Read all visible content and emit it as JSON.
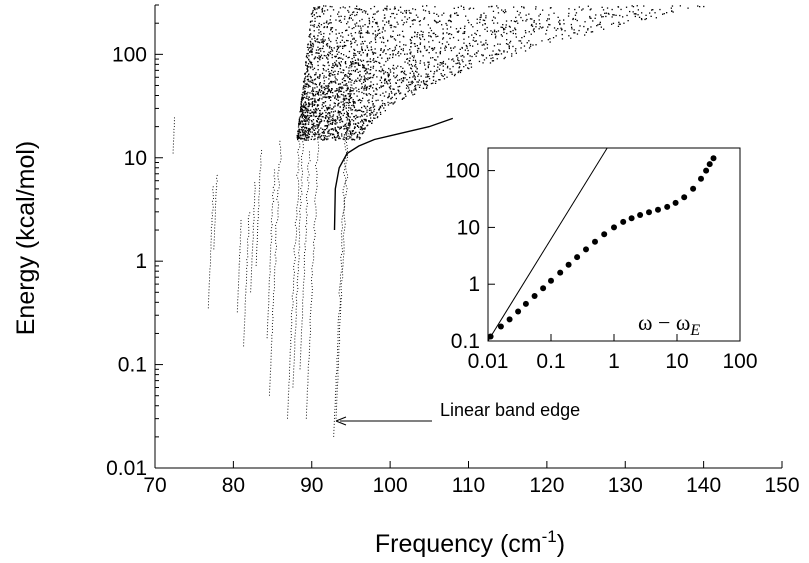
{
  "chart_data": [
    {
      "type": "scatter",
      "role": "main",
      "xlabel": "Frequency (cm",
      "xlabel_sup": "-1",
      "xlabel_close": ")",
      "ylabel": "Energy (kcal/mol)",
      "xlim": [
        70,
        150
      ],
      "ylim": [
        0.01,
        300
      ],
      "yscale": "log",
      "x_ticks": [
        "70",
        "80",
        "90",
        "100",
        "110",
        "120",
        "130",
        "140",
        "150"
      ],
      "y_ticks": [
        {
          "value": 0.01,
          "label": "0.01"
        },
        {
          "value": 0.1,
          "label": "0.1"
        },
        {
          "value": 1,
          "label": "1"
        },
        {
          "value": 10,
          "label": "10"
        },
        {
          "value": 100,
          "label": "100"
        }
      ],
      "annotation": {
        "text": "Linear band edge",
        "x": 93,
        "y": 0.03
      },
      "series": [
        {
          "kind": "branch-lines",
          "branches": [
            [
              72.3,
              11,
              25
            ],
            [
              76.8,
              0.35,
              5.5
            ],
            [
              77.5,
              1.3,
              7
            ],
            [
              80.5,
              0.32,
              2.5
            ],
            [
              81.3,
              0.15,
              3
            ],
            [
              82.2,
              0.5,
              6
            ],
            [
              82.9,
              0.9,
              12
            ],
            [
              84.3,
              0.18,
              8
            ],
            [
              84.6,
              0.05,
              15
            ],
            [
              86.9,
              0.03,
              20
            ],
            [
              87.6,
              0.06,
              25
            ],
            [
              88.5,
              0.09,
              12
            ],
            [
              89.3,
              0.03,
              30
            ],
            [
              92.8,
              0.02,
              60
            ],
            [
              93.1,
              0.03,
              80
            ]
          ],
          "edge_curve": [
            [
              92.9,
              2
            ],
            [
              93,
              5
            ],
            [
              93.5,
              8
            ],
            [
              94.5,
              11
            ],
            [
              96,
              13
            ],
            [
              98,
              15
            ],
            [
              101,
              17
            ],
            [
              105,
              20
            ],
            [
              108,
              24
            ]
          ],
          "cloud": {
            "x": [
              88,
              133
            ],
            "y": [
              15,
              300
            ]
          }
        }
      ]
    },
    {
      "type": "scatter",
      "role": "inset",
      "xscale": "log",
      "yscale": "log",
      "xlim": [
        0.01,
        100
      ],
      "ylim": [
        0.1,
        250
      ],
      "x_ticks": [
        {
          "value": 0.01,
          "label": "0.01"
        },
        {
          "value": 0.1,
          "label": "0.1"
        },
        {
          "value": 1,
          "label": "1"
        },
        {
          "value": 10,
          "label": "10"
        },
        {
          "value": 100,
          "label": "100"
        }
      ],
      "y_ticks": [
        {
          "value": 0.1,
          "label": "0.1"
        },
        {
          "value": 1,
          "label": "1"
        },
        {
          "value": 10,
          "label": "10"
        },
        {
          "value": 100,
          "label": "100"
        }
      ],
      "label_omega": "ω − ω",
      "label_sub": "E",
      "reference_line": [
        [
          0.01,
          0.1
        ],
        [
          0.78,
          250
        ]
      ],
      "series": [
        {
          "points": [
            [
              0.011,
              0.12
            ],
            [
              0.016,
              0.18
            ],
            [
              0.022,
              0.24
            ],
            [
              0.03,
              0.33
            ],
            [
              0.04,
              0.45
            ],
            [
              0.055,
              0.62
            ],
            [
              0.075,
              0.85
            ],
            [
              0.1,
              1.15
            ],
            [
              0.14,
              1.6
            ],
            [
              0.19,
              2.2
            ],
            [
              0.26,
              3.0
            ],
            [
              0.36,
              4.1
            ],
            [
              0.5,
              5.6
            ],
            [
              0.7,
              7.6
            ],
            [
              1.0,
              10
            ],
            [
              1.4,
              12.5
            ],
            [
              1.9,
              14.5
            ],
            [
              2.6,
              16.5
            ],
            [
              3.6,
              18.5
            ],
            [
              5.0,
              20.5
            ],
            [
              7.0,
              23
            ],
            [
              9.5,
              27
            ],
            [
              13,
              34
            ],
            [
              18,
              48
            ],
            [
              24,
              72
            ],
            [
              29,
              100
            ],
            [
              33,
              130
            ],
            [
              38,
              165
            ]
          ]
        }
      ]
    }
  ]
}
